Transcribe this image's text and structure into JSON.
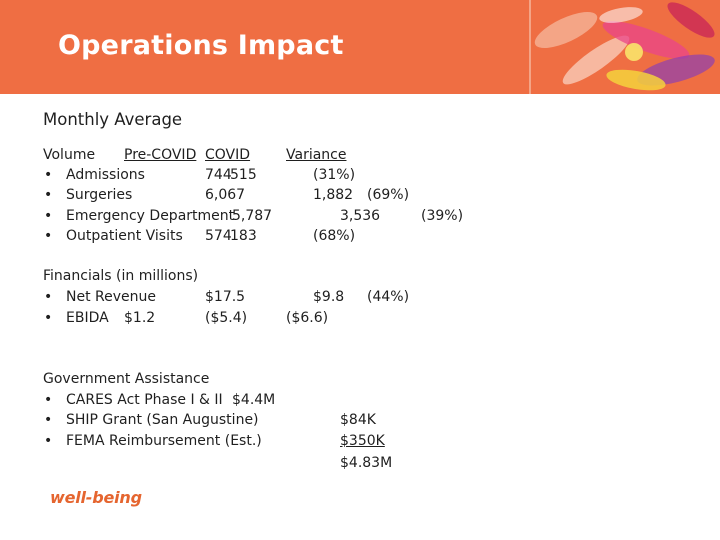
{
  "slide": {
    "title": "Operations Impact"
  },
  "monthly": {
    "heading": "Monthly Average",
    "headers": {
      "volume": "Volume",
      "pre": "Pre-COVID",
      "covid": "COVID",
      "variance": "Variance"
    },
    "bullet": "•",
    "rows": [
      {
        "label": "Admissions",
        "pre": "744",
        "covid": "515",
        "variance": "(31%)"
      },
      {
        "label": "Surgeries",
        "pre": "6,067",
        "covid": "1,882",
        "variance": "(69%)"
      },
      {
        "label": "Emergency Department",
        "pre": "5,787",
        "covid": "3,536",
        "variance": "(39%)"
      },
      {
        "label": "Outpatient Visits",
        "pre": "574",
        "covid": "183",
        "variance": "(68%)"
      }
    ]
  },
  "financials": {
    "heading": "Financials (in millions)",
    "rows": [
      {
        "label": "Net Revenue",
        "pre": "$17.5",
        "covid": "$9.8",
        "variance": "(44%)"
      },
      {
        "label": "EBIDA",
        "pre": "$1.2",
        "covid": "($5.4)",
        "variance": "($6.6)"
      }
    ]
  },
  "assistance": {
    "heading": "Government Assistance",
    "rows": [
      {
        "label": "CARES Act Phase I & II",
        "amount": "$4.4M"
      },
      {
        "label": "SHIP Grant (San Augustine)",
        "amount": "$84K"
      },
      {
        "label": "FEMA Reimbursement (Est.)",
        "amount": "$350K"
      }
    ],
    "total": "$4.83M"
  },
  "brand": {
    "logo_text": "well-being",
    "header_color": "#ef6e43",
    "logo_color": "#e5652f"
  }
}
